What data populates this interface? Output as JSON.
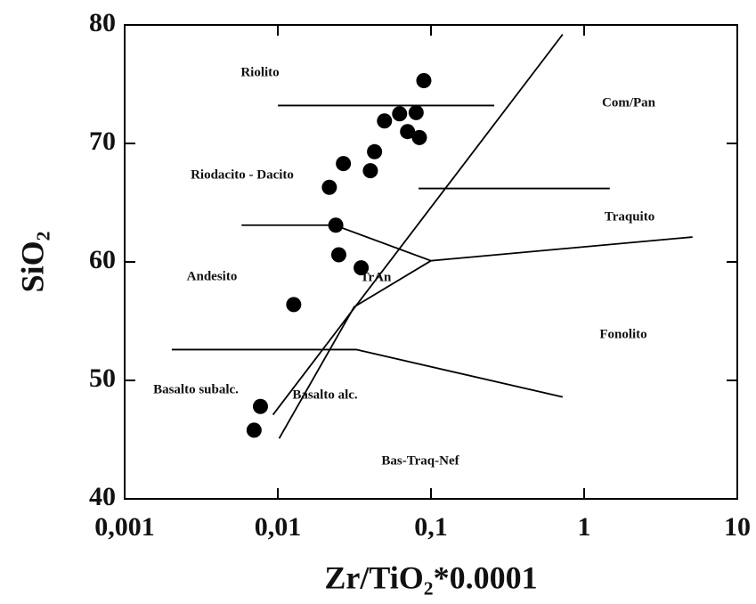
{
  "chart_data": {
    "type": "scatter",
    "x_label": "Zr/TiO₂*0.0001",
    "y_label": "SiO₂",
    "log_x": true,
    "xlim": [
      0.001,
      10
    ],
    "ylim": [
      40,
      80
    ],
    "xticks": [
      {
        "value": 0.001,
        "label": "0,001"
      },
      {
        "value": 0.01,
        "label": "0,01"
      },
      {
        "value": 0.1,
        "label": "0,1"
      },
      1,
      10
    ],
    "yticks": [
      40,
      50,
      60,
      70,
      80
    ],
    "color": "#000000",
    "series": [
      {
        "x": [
          0.0077,
          0.007,
          0.0127,
          0.0239,
          0.025,
          0.035,
          0.0268,
          0.0217,
          0.0402,
          0.0428,
          0.0497,
          0.0624,
          0.0703,
          0.08,
          0.084,
          0.0898
        ],
        "values": [
          47.8,
          45.8,
          56.4,
          63.1,
          60.6,
          59.5,
          68.3,
          66.3,
          67.7,
          69.3,
          71.9,
          72.5,
          71.0,
          72.6,
          70.5,
          75.3
        ]
      }
    ],
    "boundaries": [
      {
        "x": [
          0.01,
          0.259
        ],
        "y": [
          73.2,
          73.2
        ]
      },
      {
        "x": [
          0.0093,
          0.724
        ],
        "y": [
          47.1,
          79.2
        ]
      },
      {
        "x": [
          0.083,
          1.47
        ],
        "y": [
          66.2,
          66.2
        ]
      },
      {
        "x": [
          0.0058,
          0.0235,
          0.1,
          5.1
        ],
        "y": [
          63.1,
          63.1,
          60.1,
          62.1
        ]
      },
      {
        "x": [
          0.0102,
          0.0315,
          0.1
        ],
        "y": [
          45.1,
          56.2,
          60.1
        ]
      },
      {
        "x": [
          0.00203,
          0.0325,
          0.724
        ],
        "y": [
          52.6,
          52.6,
          48.6
        ]
      }
    ],
    "annotations": [
      "Riolito",
      "Com/Pan",
      "Riodacito - Dacito",
      "Traquito",
      "Andesito",
      "TrAn",
      "Fonolito",
      "Basalto subalc.",
      "Basalto alc.",
      "Bas-Traq-Nef"
    ]
  }
}
